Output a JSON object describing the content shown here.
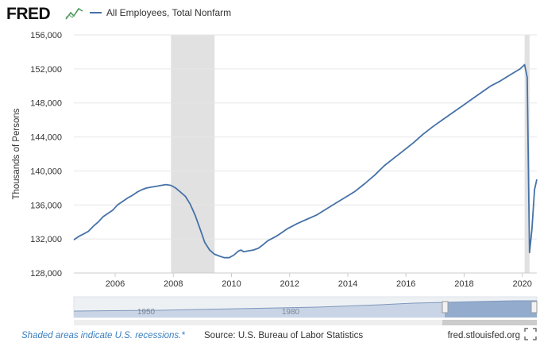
{
  "logo": {
    "text": "FRED"
  },
  "icons": {
    "logo_graph": "line-graph-icon",
    "fullscreen": "fullscreen-icon"
  },
  "legend": {
    "label": "All Employees, Total Nonfarm"
  },
  "footer": {
    "note": "Shaded areas indicate U.S. recessions.*",
    "source": "Source: U.S. Bureau of Labor Statistics",
    "site": "fred.stlouisfed.org"
  },
  "navigator": {
    "tick_labels": [
      "1950",
      "1980"
    ]
  },
  "colors": {
    "line": "#4572a7",
    "recession": "#e1e1e1",
    "grid": "#e6e6e6",
    "navigator_fill": "#8aa4c8",
    "footnote": "#3a7fc0"
  },
  "chart_data": {
    "type": "line",
    "title": "",
    "xlabel": "",
    "ylabel": "Thousands of Persons",
    "xlim": [
      2004.58,
      2020.5
    ],
    "ylim": [
      128000,
      156000
    ],
    "yticks": [
      128000,
      132000,
      136000,
      140000,
      144000,
      148000,
      152000,
      156000
    ],
    "ytick_labels": [
      "128,000",
      "132,000",
      "136,000",
      "140,000",
      "144,000",
      "148,000",
      "152,000",
      "156,000"
    ],
    "xticks": [
      2006,
      2008,
      2010,
      2012,
      2014,
      2016,
      2018,
      2020
    ],
    "xtick_labels": [
      "2006",
      "2008",
      "2010",
      "2012",
      "2014",
      "2016",
      "2018",
      "2020"
    ],
    "grid": true,
    "recessions": [
      [
        2007.92,
        2009.42
      ],
      [
        2020.08,
        2020.25
      ]
    ],
    "series": [
      {
        "name": "All Employees, Total Nonfarm",
        "x": [
          2004.58,
          2004.75,
          2004.92,
          2005.08,
          2005.25,
          2005.42,
          2005.58,
          2005.75,
          2005.92,
          2006.08,
          2006.25,
          2006.42,
          2006.58,
          2006.75,
          2006.92,
          2007.08,
          2007.25,
          2007.42,
          2007.58,
          2007.75,
          2007.92,
          2008.08,
          2008.25,
          2008.42,
          2008.58,
          2008.75,
          2008.92,
          2009.08,
          2009.25,
          2009.42,
          2009.58,
          2009.75,
          2009.92,
          2010.08,
          2010.25,
          2010.33,
          2010.42,
          2010.58,
          2010.75,
          2010.92,
          2011.08,
          2011.25,
          2011.42,
          2011.58,
          2011.75,
          2011.92,
          2012.25,
          2012.58,
          2012.92,
          2013.25,
          2013.58,
          2013.92,
          2014.25,
          2014.58,
          2014.92,
          2015.25,
          2015.58,
          2015.92,
          2016.25,
          2016.58,
          2016.92,
          2017.25,
          2017.58,
          2017.92,
          2018.25,
          2018.58,
          2018.92,
          2019.25,
          2019.58,
          2019.92,
          2020.08,
          2020.17,
          2020.25,
          2020.33,
          2020.42,
          2020.5
        ],
        "values": [
          131900,
          132300,
          132600,
          132900,
          133500,
          134000,
          134600,
          135000,
          135400,
          136000,
          136400,
          136800,
          137100,
          137500,
          137800,
          138000,
          138100,
          138200,
          138300,
          138400,
          138300,
          138000,
          137500,
          137000,
          136100,
          134800,
          133200,
          131600,
          130700,
          130200,
          130000,
          129800,
          129800,
          130100,
          130600,
          130700,
          130500,
          130600,
          130700,
          130900,
          131300,
          131800,
          132100,
          132400,
          132800,
          133200,
          133800,
          134300,
          134800,
          135500,
          136200,
          136900,
          137600,
          138500,
          139500,
          140600,
          141500,
          142400,
          143300,
          144300,
          145200,
          146000,
          146800,
          147600,
          148400,
          149200,
          150000,
          150600,
          151300,
          152000,
          152500,
          151000,
          130400,
          133100,
          137800,
          139000
        ]
      }
    ]
  }
}
